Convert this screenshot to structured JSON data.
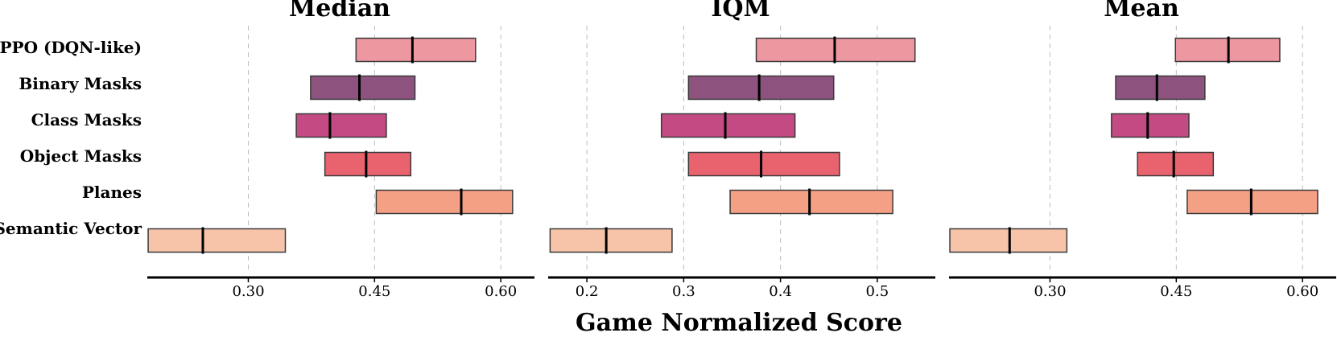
{
  "chart_data": {
    "type": "interval",
    "xlabel": "Game Normalized Score",
    "categories": [
      "PPO (DQN-like)",
      "Binary Masks",
      "Class Masks",
      "Object Masks",
      "Planes",
      "Semantic Vector"
    ],
    "colors": [
      "#ed97a1",
      "#8e527f",
      "#c44a84",
      "#e9636f",
      "#f4a084",
      "#f7c4a9"
    ],
    "panels": [
      {
        "title": "Median",
        "xlim": [
          0.18,
          0.64
        ],
        "ticks": [
          0.3,
          0.45,
          0.6
        ],
        "tick_labels": [
          "0.30",
          "0.45",
          "0.60"
        ],
        "grid": true,
        "series": [
          {
            "name": "PPO (DQN-like)",
            "low": 0.428,
            "point": 0.495,
            "high": 0.57
          },
          {
            "name": "Binary Masks",
            "low": 0.374,
            "point": 0.432,
            "high": 0.498
          },
          {
            "name": "Class Masks",
            "low": 0.357,
            "point": 0.397,
            "high": 0.464
          },
          {
            "name": "Object Masks",
            "low": 0.391,
            "point": 0.44,
            "high": 0.493
          },
          {
            "name": "Planes",
            "low": 0.452,
            "point": 0.553,
            "high": 0.614
          },
          {
            "name": "Semantic Vector",
            "low": 0.181,
            "point": 0.246,
            "high": 0.344
          }
        ]
      },
      {
        "title": "IQM",
        "xlim": [
          0.16,
          0.56
        ],
        "ticks": [
          0.2,
          0.3,
          0.4,
          0.5
        ],
        "tick_labels": [
          "0.2",
          "0.3",
          "0.4",
          "0.5"
        ],
        "grid": true,
        "series": [
          {
            "name": "PPO (DQN-like)",
            "low": 0.375,
            "point": 0.456,
            "high": 0.539
          },
          {
            "name": "Binary Masks",
            "low": 0.305,
            "point": 0.378,
            "high": 0.455
          },
          {
            "name": "Class Masks",
            "low": 0.277,
            "point": 0.343,
            "high": 0.415
          },
          {
            "name": "Object Masks",
            "low": 0.305,
            "point": 0.38,
            "high": 0.461
          },
          {
            "name": "Planes",
            "low": 0.348,
            "point": 0.43,
            "high": 0.516
          },
          {
            "name": "Semantic Vector",
            "low": 0.162,
            "point": 0.22,
            "high": 0.288
          }
        ]
      },
      {
        "title": "Mean",
        "xlim": [
          0.18,
          0.64
        ],
        "ticks": [
          0.3,
          0.45,
          0.6
        ],
        "tick_labels": [
          "0.30",
          "0.45",
          "0.60"
        ],
        "grid": true,
        "series": [
          {
            "name": "PPO (DQN-like)",
            "low": 0.449,
            "point": 0.512,
            "high": 0.573
          },
          {
            "name": "Binary Masks",
            "low": 0.378,
            "point": 0.427,
            "high": 0.484
          },
          {
            "name": "Class Masks",
            "low": 0.373,
            "point": 0.416,
            "high": 0.465
          },
          {
            "name": "Object Masks",
            "low": 0.404,
            "point": 0.447,
            "high": 0.494
          },
          {
            "name": "Planes",
            "low": 0.463,
            "point": 0.539,
            "high": 0.618
          },
          {
            "name": "Semantic Vector",
            "low": 0.181,
            "point": 0.252,
            "high": 0.32
          }
        ]
      }
    ]
  }
}
